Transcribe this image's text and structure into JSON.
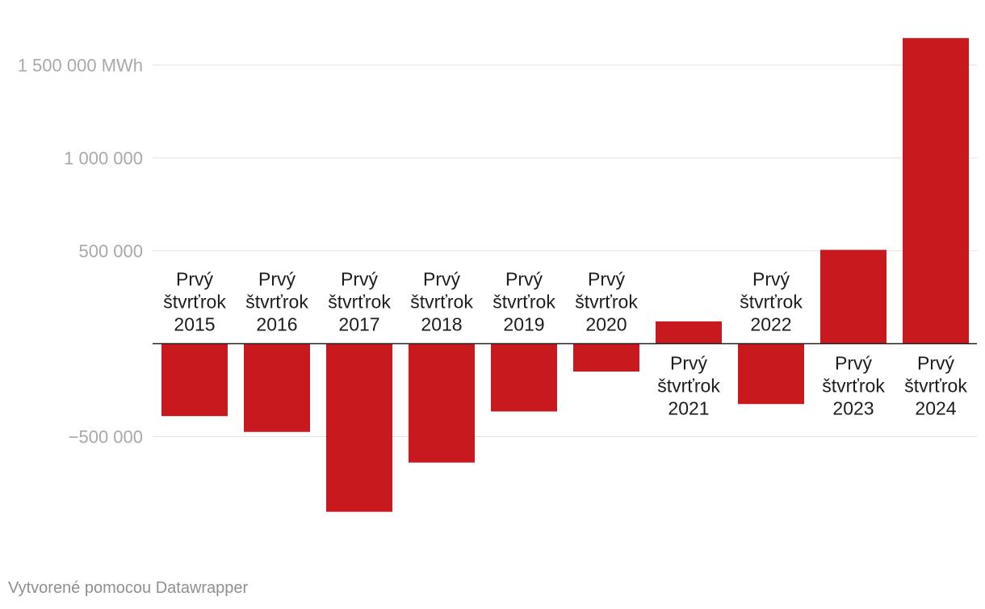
{
  "chart_data": {
    "type": "bar",
    "title": "",
    "xlabel": "",
    "ylabel": "",
    "unit": "MWh",
    "ylim": [
      -950000,
      1700000
    ],
    "yticks": [
      {
        "value": 1500000,
        "label": "1 500 000 MWh"
      },
      {
        "value": 1000000,
        "label": "1 000 000"
      },
      {
        "value": 500000,
        "label": "500 000"
      },
      {
        "value": -500000,
        "label": "−500 000"
      }
    ],
    "categories": [
      "Prvý štvrťrok 2015",
      "Prvý štvrťrok 2016",
      "Prvý štvrťrok 2017",
      "Prvý štvrťrok 2018",
      "Prvý štvrťrok 2019",
      "Prvý štvrťrok 2020",
      "Prvý štvrťrok 2021",
      "Prvý štvrťrok 2022",
      "Prvý štvrťrok 2023",
      "Prvý štvrťrok 2024"
    ],
    "category_label_lines": [
      [
        "Prvý",
        "štvrťrok",
        "2015"
      ],
      [
        "Prvý",
        "štvrťrok",
        "2016"
      ],
      [
        "Prvý",
        "štvrťrok",
        "2017"
      ],
      [
        "Prvý",
        "štvrťrok",
        "2018"
      ],
      [
        "Prvý",
        "štvrťrok",
        "2019"
      ],
      [
        "Prvý",
        "štvrťrok",
        "2020"
      ],
      [
        "Prvý",
        "štvrťrok",
        "2021"
      ],
      [
        "Prvý",
        "štvrťrok",
        "2022"
      ],
      [
        "Prvý",
        "štvrťrok",
        "2023"
      ],
      [
        "Prvý",
        "štvrťrok",
        "2024"
      ]
    ],
    "values": [
      -390000,
      -475000,
      -905000,
      -640000,
      -365000,
      -150000,
      120000,
      -325000,
      505000,
      1645000
    ],
    "bar_color": "#c8191e",
    "grid": true
  },
  "footer": {
    "credit": "Vytvorené pomocou Datawrapper"
  }
}
